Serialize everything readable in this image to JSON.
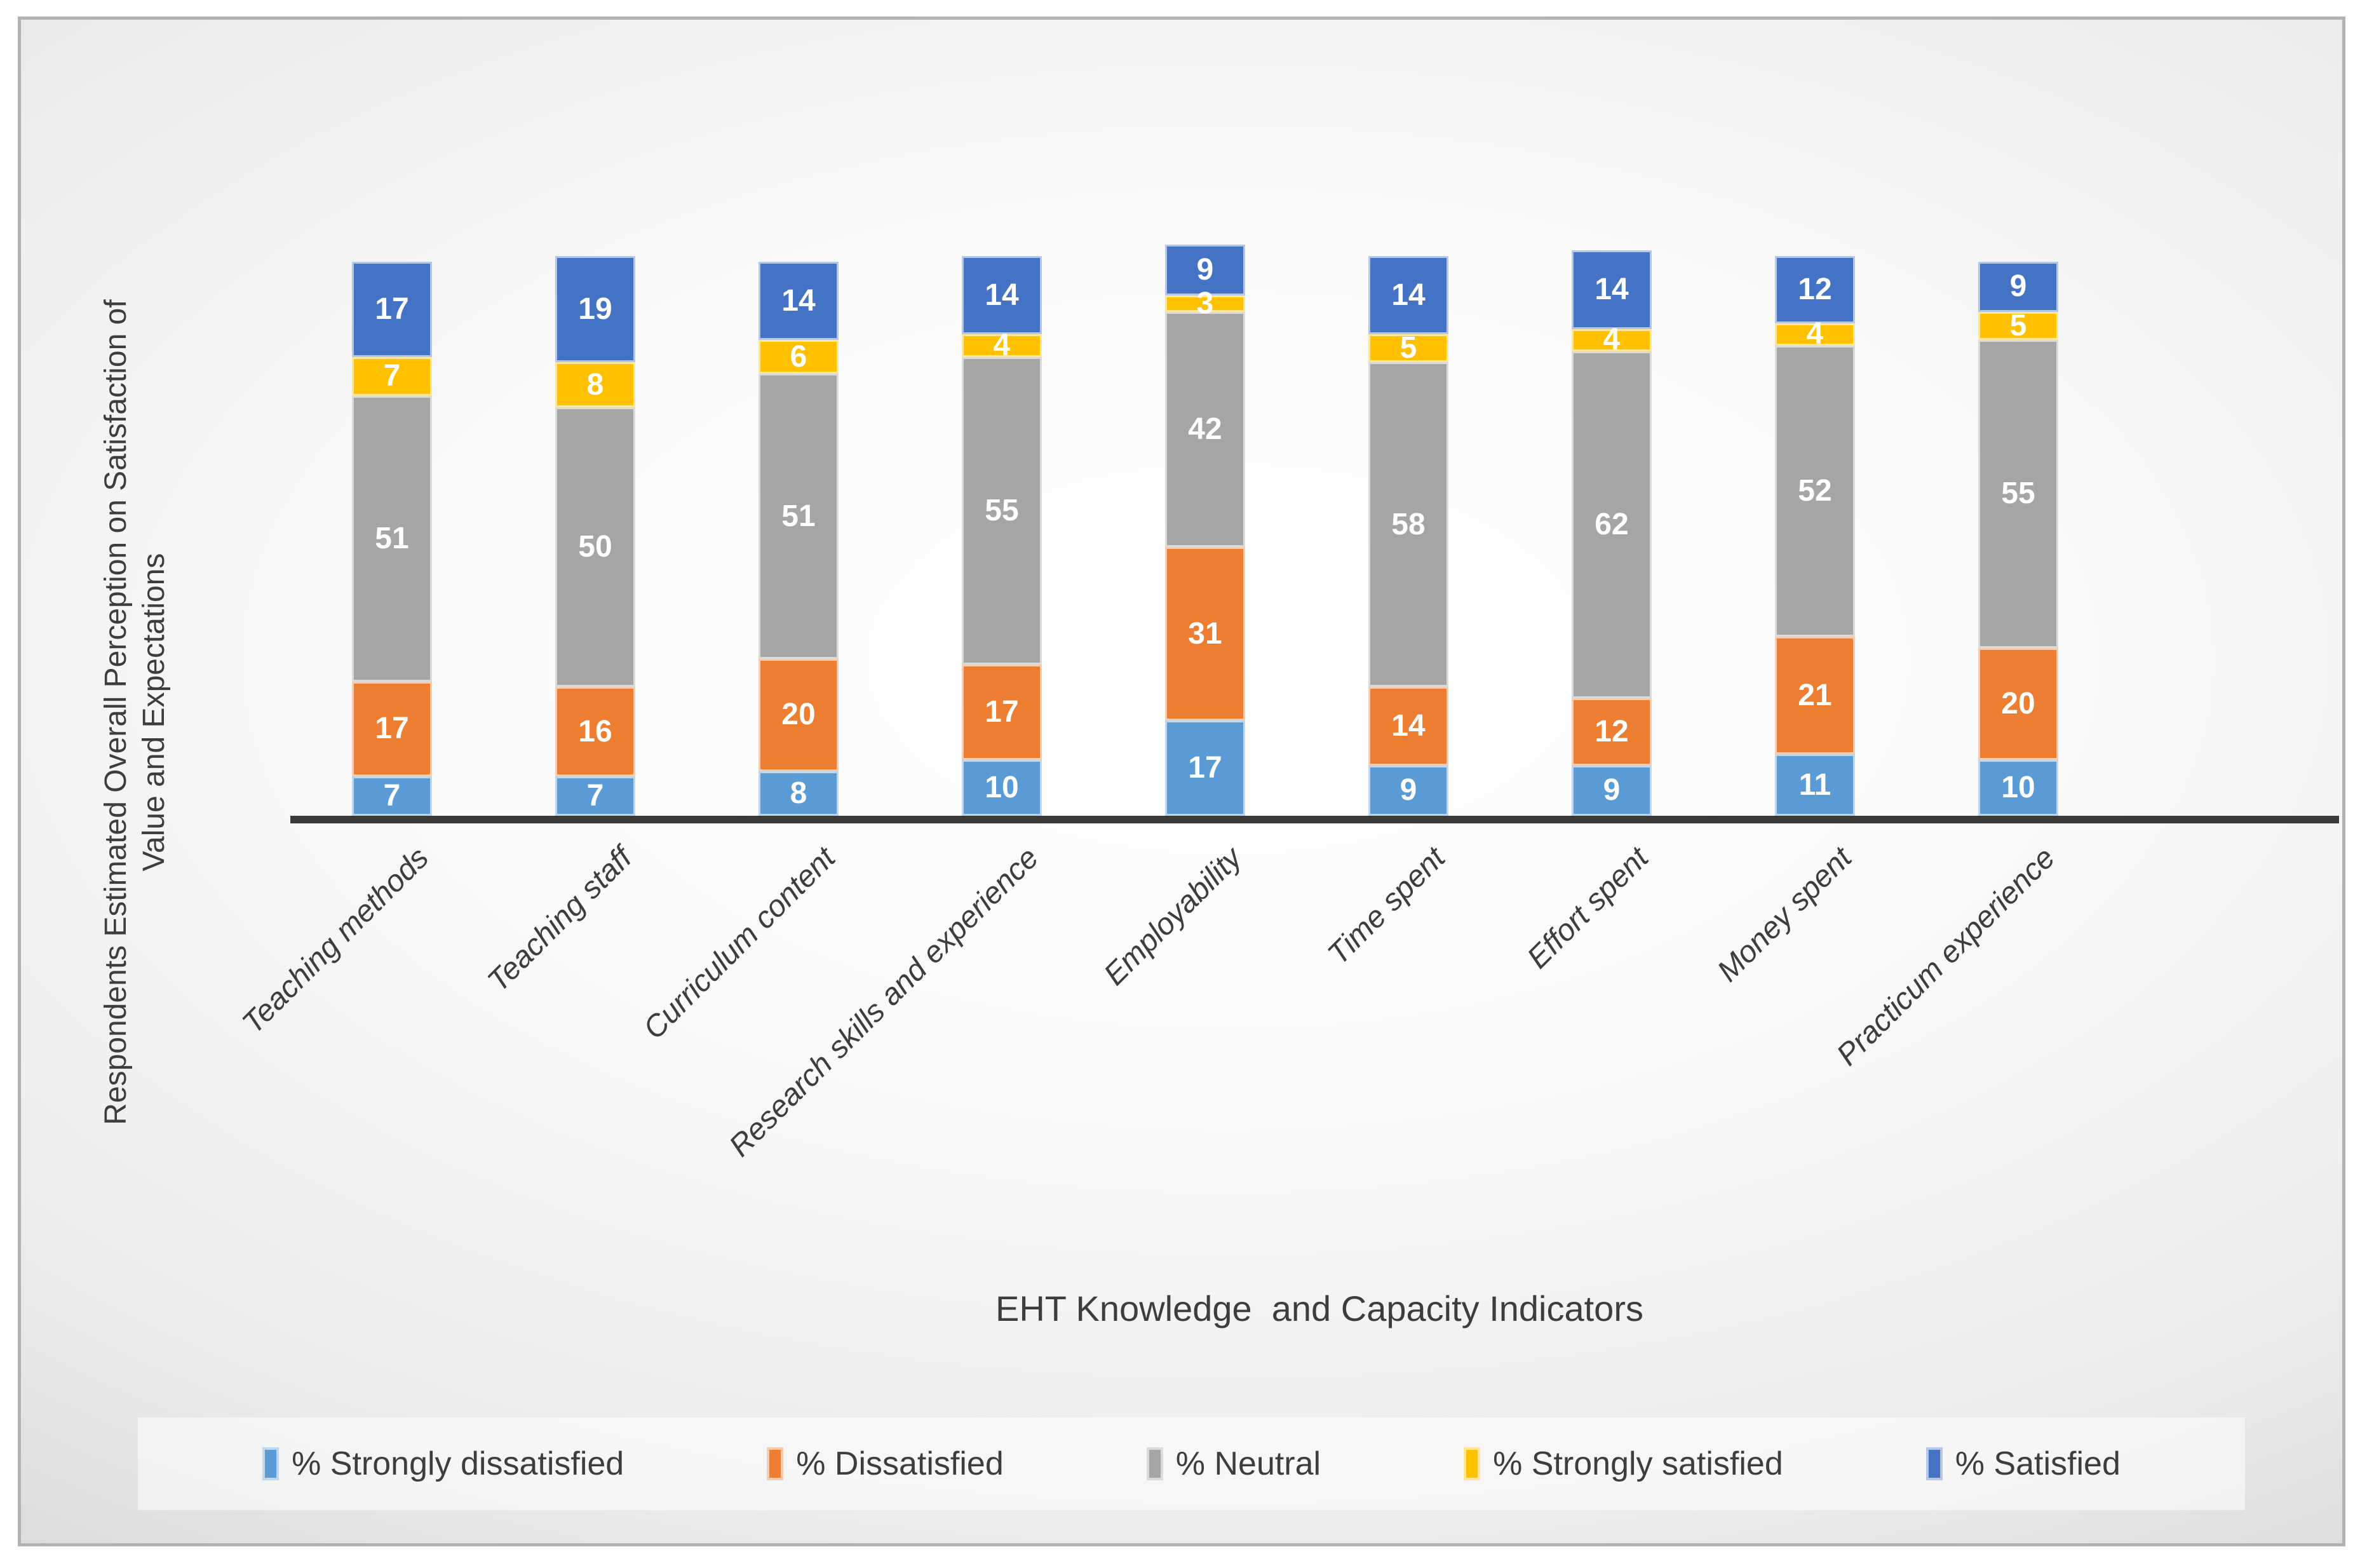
{
  "chart_data": {
    "type": "bar",
    "stacked": true,
    "orientation": "vertical",
    "gridlines": false,
    "legend_position": "bottom",
    "xlabel": "EHT Knowledge  and Capacity Indicators",
    "ylabel_line1": "Respondents Estimated Overall Perception on Satisfaction of",
    "ylabel_line2": "Value and Expectations",
    "axis_line_color": "#3a3a3a",
    "value_label_color": "#ffffff",
    "categories": [
      "Teaching methods",
      "Teaching staff",
      "Curriculum content",
      "Research skills and experience",
      "Employability",
      "Time spent",
      "Effort spent",
      "Money spent",
      "Practicum experience"
    ],
    "series": [
      {
        "name": "% Strongly dissatisfied",
        "color": "#5B9BD5",
        "border": "#BDD7EE",
        "values": [
          7,
          7,
          8,
          10,
          17,
          9,
          9,
          11,
          10
        ]
      },
      {
        "name": "% Dissatisfied",
        "color": "#ED7D31",
        "border": "#F7CBAC",
        "values": [
          17,
          16,
          20,
          17,
          31,
          14,
          12,
          21,
          20
        ]
      },
      {
        "name": "% Neutral",
        "color": "#A5A5A5",
        "border": "#DBDBDB",
        "values": [
          51,
          50,
          51,
          55,
          42,
          58,
          62,
          52,
          55
        ]
      },
      {
        "name": "% Strongly satisfied",
        "color": "#FFC000",
        "border": "#FFE699",
        "values": [
          7,
          8,
          6,
          4,
          3,
          5,
          4,
          4,
          5
        ]
      },
      {
        "name": "% Satisfied",
        "color": "#4472C4",
        "border": "#B4C7E7",
        "values": [
          17,
          19,
          14,
          14,
          9,
          14,
          14,
          12,
          9
        ]
      }
    ]
  }
}
